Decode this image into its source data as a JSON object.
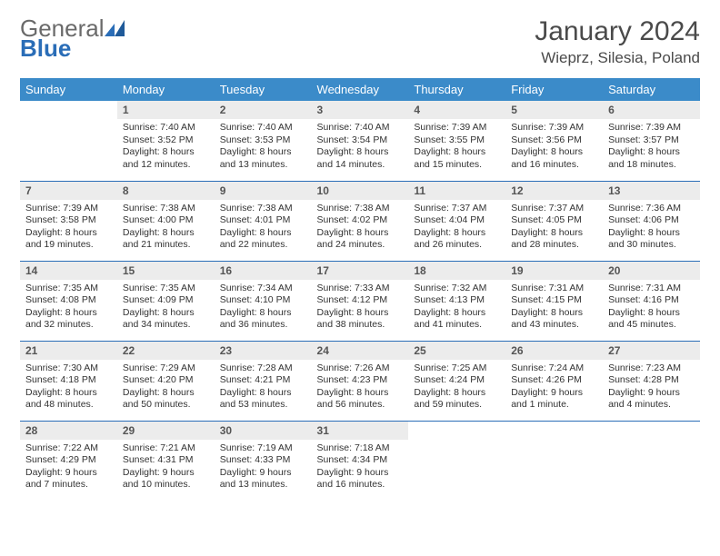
{
  "logo": {
    "text1": "General",
    "text2": "Blue"
  },
  "title": "January 2024",
  "location": "Wieprz, Silesia, Poland",
  "colors": {
    "header_bg": "#3b8bc9",
    "header_text": "#ffffff",
    "rule": "#2a6db7",
    "daynum_bg": "#ececec",
    "logo_gray": "#6a6a6a",
    "logo_blue": "#2a6db7"
  },
  "day_headers": [
    "Sunday",
    "Monday",
    "Tuesday",
    "Wednesday",
    "Thursday",
    "Friday",
    "Saturday"
  ],
  "weeks": [
    [
      {
        "num": "",
        "sunrise": "",
        "sunset": "",
        "daylight": ""
      },
      {
        "num": "1",
        "sunrise": "Sunrise: 7:40 AM",
        "sunset": "Sunset: 3:52 PM",
        "daylight": "Daylight: 8 hours and 12 minutes."
      },
      {
        "num": "2",
        "sunrise": "Sunrise: 7:40 AM",
        "sunset": "Sunset: 3:53 PM",
        "daylight": "Daylight: 8 hours and 13 minutes."
      },
      {
        "num": "3",
        "sunrise": "Sunrise: 7:40 AM",
        "sunset": "Sunset: 3:54 PM",
        "daylight": "Daylight: 8 hours and 14 minutes."
      },
      {
        "num": "4",
        "sunrise": "Sunrise: 7:39 AM",
        "sunset": "Sunset: 3:55 PM",
        "daylight": "Daylight: 8 hours and 15 minutes."
      },
      {
        "num": "5",
        "sunrise": "Sunrise: 7:39 AM",
        "sunset": "Sunset: 3:56 PM",
        "daylight": "Daylight: 8 hours and 16 minutes."
      },
      {
        "num": "6",
        "sunrise": "Sunrise: 7:39 AM",
        "sunset": "Sunset: 3:57 PM",
        "daylight": "Daylight: 8 hours and 18 minutes."
      }
    ],
    [
      {
        "num": "7",
        "sunrise": "Sunrise: 7:39 AM",
        "sunset": "Sunset: 3:58 PM",
        "daylight": "Daylight: 8 hours and 19 minutes."
      },
      {
        "num": "8",
        "sunrise": "Sunrise: 7:38 AM",
        "sunset": "Sunset: 4:00 PM",
        "daylight": "Daylight: 8 hours and 21 minutes."
      },
      {
        "num": "9",
        "sunrise": "Sunrise: 7:38 AM",
        "sunset": "Sunset: 4:01 PM",
        "daylight": "Daylight: 8 hours and 22 minutes."
      },
      {
        "num": "10",
        "sunrise": "Sunrise: 7:38 AM",
        "sunset": "Sunset: 4:02 PM",
        "daylight": "Daylight: 8 hours and 24 minutes."
      },
      {
        "num": "11",
        "sunrise": "Sunrise: 7:37 AM",
        "sunset": "Sunset: 4:04 PM",
        "daylight": "Daylight: 8 hours and 26 minutes."
      },
      {
        "num": "12",
        "sunrise": "Sunrise: 7:37 AM",
        "sunset": "Sunset: 4:05 PM",
        "daylight": "Daylight: 8 hours and 28 minutes."
      },
      {
        "num": "13",
        "sunrise": "Sunrise: 7:36 AM",
        "sunset": "Sunset: 4:06 PM",
        "daylight": "Daylight: 8 hours and 30 minutes."
      }
    ],
    [
      {
        "num": "14",
        "sunrise": "Sunrise: 7:35 AM",
        "sunset": "Sunset: 4:08 PM",
        "daylight": "Daylight: 8 hours and 32 minutes."
      },
      {
        "num": "15",
        "sunrise": "Sunrise: 7:35 AM",
        "sunset": "Sunset: 4:09 PM",
        "daylight": "Daylight: 8 hours and 34 minutes."
      },
      {
        "num": "16",
        "sunrise": "Sunrise: 7:34 AM",
        "sunset": "Sunset: 4:10 PM",
        "daylight": "Daylight: 8 hours and 36 minutes."
      },
      {
        "num": "17",
        "sunrise": "Sunrise: 7:33 AM",
        "sunset": "Sunset: 4:12 PM",
        "daylight": "Daylight: 8 hours and 38 minutes."
      },
      {
        "num": "18",
        "sunrise": "Sunrise: 7:32 AM",
        "sunset": "Sunset: 4:13 PM",
        "daylight": "Daylight: 8 hours and 41 minutes."
      },
      {
        "num": "19",
        "sunrise": "Sunrise: 7:31 AM",
        "sunset": "Sunset: 4:15 PM",
        "daylight": "Daylight: 8 hours and 43 minutes."
      },
      {
        "num": "20",
        "sunrise": "Sunrise: 7:31 AM",
        "sunset": "Sunset: 4:16 PM",
        "daylight": "Daylight: 8 hours and 45 minutes."
      }
    ],
    [
      {
        "num": "21",
        "sunrise": "Sunrise: 7:30 AM",
        "sunset": "Sunset: 4:18 PM",
        "daylight": "Daylight: 8 hours and 48 minutes."
      },
      {
        "num": "22",
        "sunrise": "Sunrise: 7:29 AM",
        "sunset": "Sunset: 4:20 PM",
        "daylight": "Daylight: 8 hours and 50 minutes."
      },
      {
        "num": "23",
        "sunrise": "Sunrise: 7:28 AM",
        "sunset": "Sunset: 4:21 PM",
        "daylight": "Daylight: 8 hours and 53 minutes."
      },
      {
        "num": "24",
        "sunrise": "Sunrise: 7:26 AM",
        "sunset": "Sunset: 4:23 PM",
        "daylight": "Daylight: 8 hours and 56 minutes."
      },
      {
        "num": "25",
        "sunrise": "Sunrise: 7:25 AM",
        "sunset": "Sunset: 4:24 PM",
        "daylight": "Daylight: 8 hours and 59 minutes."
      },
      {
        "num": "26",
        "sunrise": "Sunrise: 7:24 AM",
        "sunset": "Sunset: 4:26 PM",
        "daylight": "Daylight: 9 hours and 1 minute."
      },
      {
        "num": "27",
        "sunrise": "Sunrise: 7:23 AM",
        "sunset": "Sunset: 4:28 PM",
        "daylight": "Daylight: 9 hours and 4 minutes."
      }
    ],
    [
      {
        "num": "28",
        "sunrise": "Sunrise: 7:22 AM",
        "sunset": "Sunset: 4:29 PM",
        "daylight": "Daylight: 9 hours and 7 minutes."
      },
      {
        "num": "29",
        "sunrise": "Sunrise: 7:21 AM",
        "sunset": "Sunset: 4:31 PM",
        "daylight": "Daylight: 9 hours and 10 minutes."
      },
      {
        "num": "30",
        "sunrise": "Sunrise: 7:19 AM",
        "sunset": "Sunset: 4:33 PM",
        "daylight": "Daylight: 9 hours and 13 minutes."
      },
      {
        "num": "31",
        "sunrise": "Sunrise: 7:18 AM",
        "sunset": "Sunset: 4:34 PM",
        "daylight": "Daylight: 9 hours and 16 minutes."
      },
      {
        "num": "",
        "sunrise": "",
        "sunset": "",
        "daylight": ""
      },
      {
        "num": "",
        "sunrise": "",
        "sunset": "",
        "daylight": ""
      },
      {
        "num": "",
        "sunrise": "",
        "sunset": "",
        "daylight": ""
      }
    ]
  ]
}
